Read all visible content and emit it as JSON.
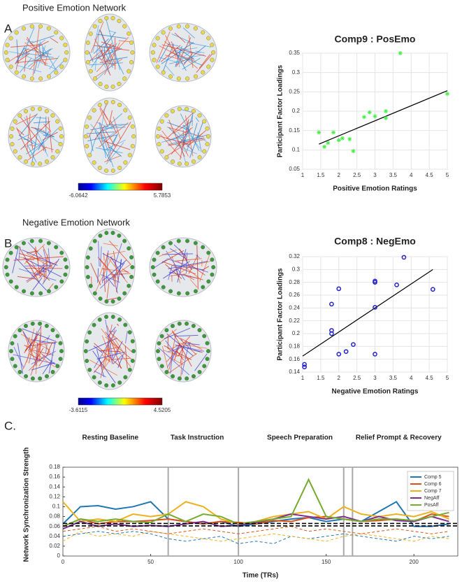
{
  "panels": [
    {
      "label": "A.",
      "title": "Positive Emotion Network",
      "colorbar": {
        "min": -6.0642,
        "max": 5.7853
      }
    },
    {
      "label": "B.",
      "title": "Negative Emotion Network",
      "colorbar": {
        "min": -3.6115,
        "max": 4.5205
      }
    },
    {
      "label": "C."
    }
  ],
  "chart_data": [
    {
      "type": "scatter",
      "title": "Comp9 : PosEmo",
      "x_label": "Positive Emotion Ratings",
      "y_label": "Participant Factor Loadings",
      "marker": "star",
      "color": "#44ee44",
      "grid": true,
      "x": [
        1.45,
        1.6,
        1.7,
        1.85,
        2.0,
        2.1,
        2.3,
        2.4,
        2.7,
        2.85,
        3.0,
        3.3,
        3.3,
        3.7,
        5.0
      ],
      "values": [
        0.145,
        0.108,
        0.118,
        0.145,
        0.125,
        0.13,
        0.128,
        0.097,
        0.185,
        0.197,
        0.187,
        0.182,
        0.2,
        0.35,
        0.245
      ],
      "fit_line": {
        "x": [
          1.45,
          5.0
        ],
        "y": [
          0.115,
          0.253
        ]
      },
      "xlim": [
        1,
        5
      ],
      "xticks": [
        1,
        1.5,
        2,
        2.5,
        3,
        3.5,
        4,
        4.5,
        5
      ],
      "ylim": [
        0.05,
        0.35
      ],
      "yticks": [
        0.05,
        0.1,
        0.15,
        0.2,
        0.25,
        0.3,
        0.35
      ]
    },
    {
      "type": "scatter",
      "title": "Comp8 : NegEmo",
      "x_label": "Negative Emotion Ratings",
      "y_label": "Participant Factor Loadings",
      "marker": "circle",
      "color": "#2222cc",
      "grid": true,
      "x": [
        1.05,
        1.05,
        1.8,
        1.8,
        1.8,
        2.0,
        2.0,
        2.2,
        2.4,
        3.0,
        3.0,
        3.0,
        3.0,
        3.6,
        3.8,
        4.6
      ],
      "values": [
        0.152,
        0.148,
        0.246,
        0.205,
        0.2,
        0.27,
        0.168,
        0.172,
        0.183,
        0.282,
        0.28,
        0.241,
        0.168,
        0.276,
        0.319,
        0.269
      ],
      "fit_line": {
        "x": [
          1.0,
          4.6
        ],
        "y": [
          0.165,
          0.3
        ]
      },
      "xlim": [
        1,
        5
      ],
      "xticks": [
        1,
        1.5,
        2,
        2.5,
        3,
        3.5,
        4,
        4.5,
        5
      ],
      "ylim": [
        0.14,
        0.32
      ],
      "yticks": [
        0.14,
        0.16,
        0.18,
        0.2,
        0.22,
        0.24,
        0.26,
        0.28,
        0.3,
        0.32
      ]
    },
    {
      "type": "line",
      "x_label": "Time (TRs)",
      "y_label": "Network Synchronization Strength",
      "legend": "upper right",
      "x": [
        0,
        10,
        20,
        30,
        40,
        50,
        60,
        70,
        80,
        90,
        100,
        110,
        120,
        130,
        140,
        150,
        160,
        170,
        180,
        190,
        200,
        210,
        220
      ],
      "series": [
        {
          "name": "Comp 5",
          "color": "#1f77b4",
          "values": [
            0.065,
            0.1,
            0.102,
            0.095,
            0.1,
            0.11,
            0.075,
            0.07,
            0.065,
            0.07,
            0.06,
            0.065,
            0.07,
            0.075,
            0.078,
            0.07,
            0.075,
            0.07,
            0.09,
            0.11,
            0.06,
            0.06,
            0.065
          ]
        },
        {
          "name": "Comp 6",
          "color": "#d95319",
          "values": [
            0.06,
            0.075,
            0.065,
            0.07,
            0.07,
            0.072,
            0.075,
            0.07,
            0.065,
            0.07,
            0.068,
            0.065,
            0.072,
            0.07,
            0.078,
            0.08,
            0.075,
            0.07,
            0.072,
            0.075,
            0.07,
            0.085,
            0.08
          ]
        },
        {
          "name": "Comp 7",
          "color": "#edb120",
          "values": [
            0.11,
            0.07,
            0.075,
            0.07,
            0.085,
            0.08,
            0.085,
            0.11,
            0.1,
            0.075,
            0.065,
            0.07,
            0.08,
            0.085,
            0.09,
            0.075,
            0.1,
            0.085,
            0.08,
            0.085,
            0.08,
            0.09,
            0.075
          ]
        },
        {
          "name": "NegAff",
          "color": "#7e2f8e",
          "values": [
            0.055,
            0.07,
            0.06,
            0.065,
            0.06,
            0.062,
            0.06,
            0.065,
            0.07,
            0.06,
            0.062,
            0.068,
            0.075,
            0.085,
            0.08,
            0.075,
            0.08,
            0.07,
            0.08,
            0.072,
            0.07,
            0.08,
            0.07
          ]
        },
        {
          "name": "PosAff",
          "color": "#77ac30",
          "values": [
            0.06,
            0.075,
            0.07,
            0.075,
            0.07,
            0.068,
            0.085,
            0.07,
            0.085,
            0.08,
            0.065,
            0.07,
            0.075,
            0.08,
            0.155,
            0.08,
            0.075,
            0.07,
            0.075,
            0.075,
            0.072,
            0.08,
            0.088
          ]
        },
        {
          "color": "#1f77b4",
          "style": "dashed",
          "values": [
            0.04,
            0.045,
            0.05,
            0.045,
            0.05,
            0.045,
            0.035,
            0.03,
            0.035,
            0.04,
            0.025,
            0.03,
            0.025,
            0.04,
            0.035,
            0.04,
            0.045,
            0.04,
            0.035,
            0.03,
            0.04,
            0.035,
            0.04
          ]
        },
        {
          "color": "#edb120",
          "style": "dashed",
          "values": [
            0.03,
            0.05,
            0.04,
            0.045,
            0.04,
            0.05,
            0.045,
            0.04,
            0.035,
            0.03,
            0.035,
            0.04,
            0.045,
            0.04,
            0.035,
            0.03,
            0.04,
            0.045,
            0.04,
            0.035,
            0.03,
            0.04,
            0.035
          ]
        },
        {
          "color": "#d95319",
          "style": "dashed",
          "values": [
            0.05,
            0.055,
            0.06,
            0.05,
            0.055,
            0.05,
            0.045,
            0.05,
            0.055,
            0.05,
            0.045,
            0.05,
            0.055,
            0.06,
            0.05,
            0.055,
            0.05,
            0.045,
            0.05,
            0.055,
            0.05,
            0.045,
            0.05
          ]
        }
      ],
      "hlines": [
        0.066,
        0.061
      ],
      "vlines": [
        60,
        100,
        160,
        165
      ],
      "annotations": [
        "Resting Baseline",
        "Task Instruction",
        "Speech Preparation",
        "Relief Prompt & Recovery"
      ],
      "xlim": [
        0,
        225
      ],
      "xticks": [
        0,
        50,
        100,
        150,
        200
      ],
      "ylim": [
        0,
        0.18
      ],
      "yticks": [
        0,
        0.02,
        0.04,
        0.06,
        0.08,
        0.1,
        0.12,
        0.14,
        0.16,
        0.18
      ]
    }
  ]
}
